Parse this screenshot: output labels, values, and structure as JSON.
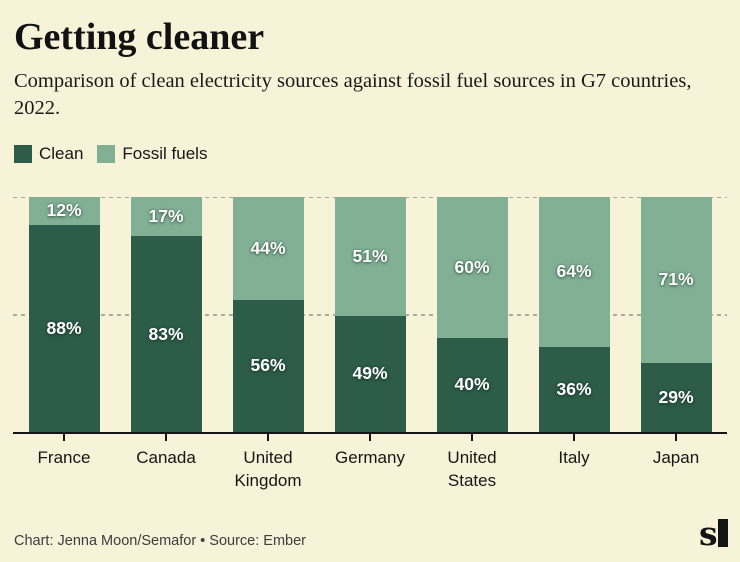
{
  "title": "Getting cleaner",
  "subtitle": "Comparison of clean electricity sources against fossil fuel sources in G7 countries, 2022.",
  "legend": [
    {
      "label": "Clean",
      "color": "#2D5C49"
    },
    {
      "label": "Fossil fuels",
      "color": "#81B095"
    }
  ],
  "colors": {
    "background": "#F7F3D9",
    "clean": "#2D5C49",
    "fossil": "#81B095",
    "gridline": "#ADA99B",
    "axis": "#141414",
    "bar_label": "#FFFFFF"
  },
  "footer": {
    "credit": "Chart: Jenna Moon/Semafor • Source: Ember",
    "logo": "semafor-logo"
  },
  "chart_data": {
    "type": "bar",
    "stacked": true,
    "orientation": "vertical",
    "categories": [
      "France",
      "Canada",
      "United Kingdom",
      "Germany",
      "United States",
      "Italy",
      "Japan"
    ],
    "series": [
      {
        "name": "Clean",
        "color": "#2D5C49",
        "values": [
          88,
          83,
          56,
          49,
          40,
          36,
          29
        ]
      },
      {
        "name": "Fossil fuels",
        "color": "#81B095",
        "values": [
          12,
          17,
          44,
          51,
          60,
          64,
          71
        ]
      }
    ],
    "value_suffix": "%",
    "value_labels": true,
    "ylim": [
      0,
      100
    ],
    "gridlines": [
      50,
      100
    ],
    "grid_style": "dashed",
    "legend_position": "top-left",
    "xlabel": "",
    "ylabel": ""
  }
}
